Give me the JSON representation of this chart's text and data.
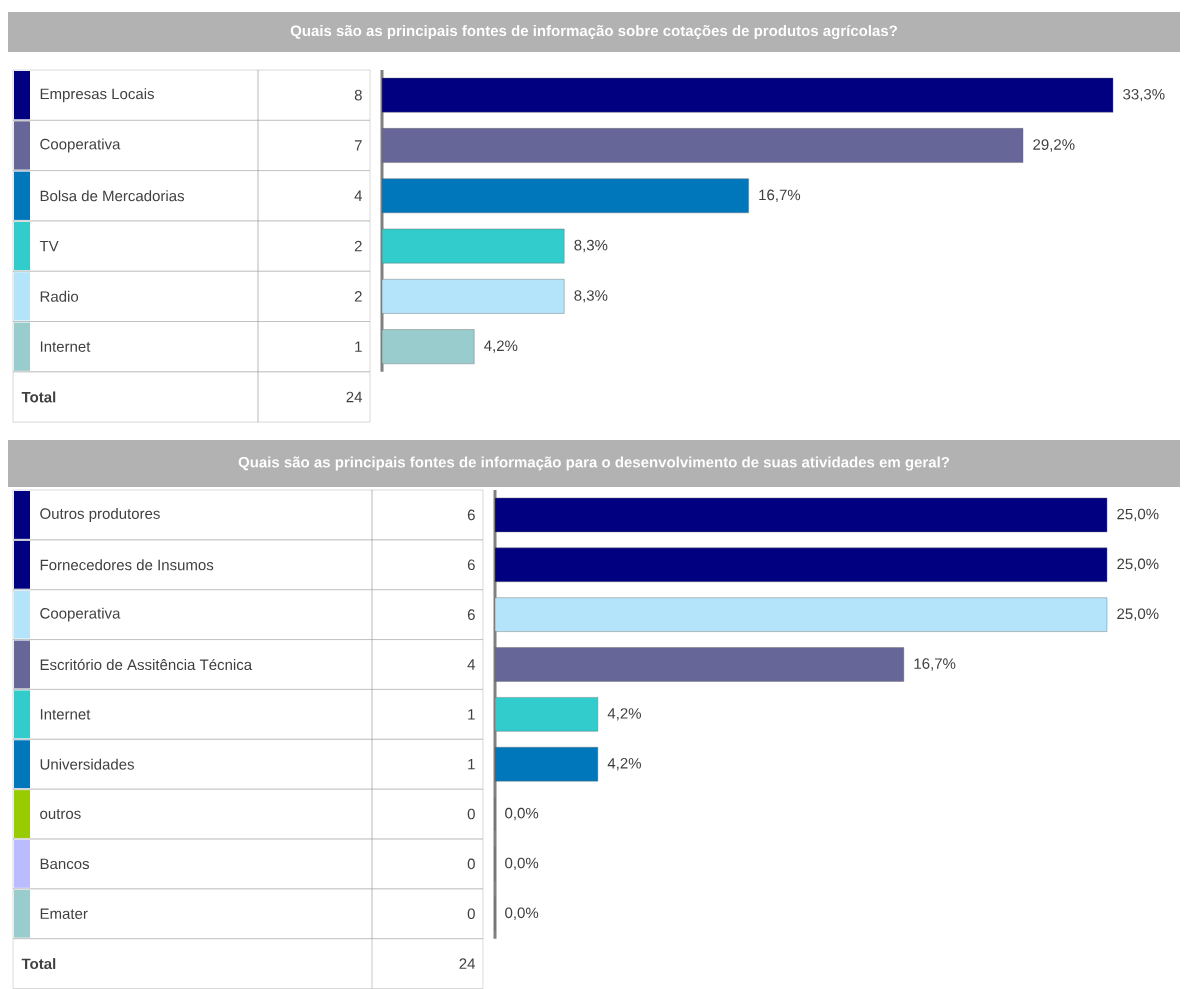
{
  "chart_data": [
    {
      "type": "bar",
      "orientation": "horizontal",
      "title": "Quais são as principais fontes de informação sobre cotações de produtos agrícolas?",
      "categories": [
        "Empresas Locais",
        "Cooperativa",
        "Bolsa de Mercadorias",
        "TV",
        "Radio",
        "Internet"
      ],
      "values": [
        33.3,
        29.2,
        16.7,
        8.3,
        8.3,
        4.2
      ],
      "value_labels": [
        "33,3%",
        "29,2%",
        "16,7%",
        "8,3%",
        "8,3%",
        "4,2%"
      ],
      "colors": [
        "#000080",
        "#666699",
        "#0077bb",
        "#33cccc",
        "#b4e4fa",
        "#99cccc"
      ],
      "annotations": [
        "8",
        "7",
        "4",
        "2",
        "2",
        "1",
        "Total",
        "24"
      ]
    },
    {
      "type": "bar",
      "orientation": "horizontal",
      "title": "Quais são as principais fontes de informação para o desenvolvimento de suas atividades em geral?",
      "categories": [
        "Outros produtores",
        "Fornecedores de Insumos",
        "Cooperativa",
        "Escritório de Assitência Técnica",
        "Internet",
        "Universidades",
        "outros",
        "Bancos",
        "Emater"
      ],
      "values": [
        25.0,
        25.0,
        25.0,
        16.7,
        4.2,
        4.2,
        0.0,
        0.0,
        0.0
      ],
      "value_labels": [
        "25,0%",
        "25,0%",
        "25,0%",
        "16,7%",
        "4,2%",
        "4,2%",
        "0,0%",
        "0,0%",
        "0,0%"
      ],
      "colors": [
        "#000080",
        "#000080",
        "#b4e4fa",
        "#666699",
        "#33cccc",
        "#0077bb",
        "#99cc00",
        "#bbbbff",
        "#99cccc"
      ],
      "annotations": [
        "6",
        "6",
        "6",
        "4",
        "1",
        "1",
        "0",
        "0",
        "0",
        "Total",
        "24"
      ]
    }
  ]
}
